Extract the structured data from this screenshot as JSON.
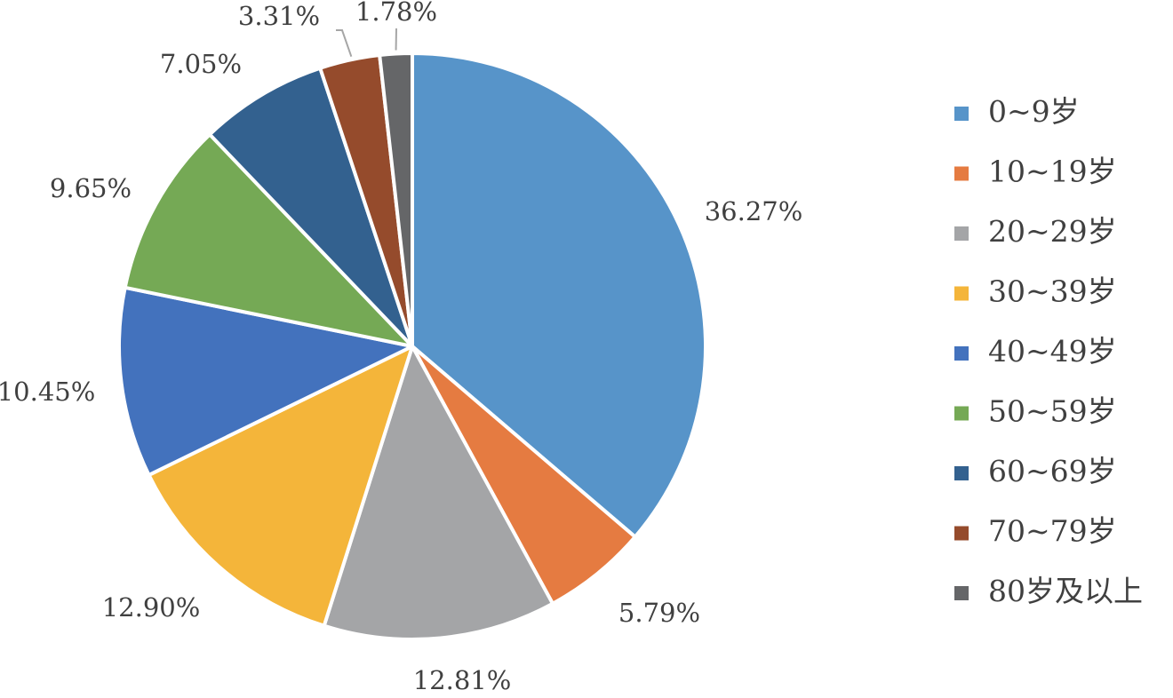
{
  "chart_data": {
    "type": "pie",
    "title": "",
    "legend_position": "right",
    "categories": [
      "0~9岁",
      "10~19岁",
      "20~29岁",
      "30~39岁",
      "40~49岁",
      "50~59岁",
      "60~69岁",
      "70~79岁",
      "80岁及以上"
    ],
    "values": [
      36.27,
      5.79,
      12.81,
      12.9,
      10.45,
      9.65,
      7.05,
      3.31,
      1.78
    ],
    "labels": [
      "36.27%",
      "5.79%",
      "12.81%",
      "12.90%",
      "10.45%",
      "9.65%",
      "7.05%",
      "3.31%",
      "1.78%"
    ],
    "colors": [
      "#5794c9",
      "#e57b41",
      "#a4a5a7",
      "#f4b53a",
      "#4372bd",
      "#75a955",
      "#33618f",
      "#954b2c",
      "#656668"
    ],
    "start_angle": "12 o'clock",
    "direction": "clockwise"
  }
}
